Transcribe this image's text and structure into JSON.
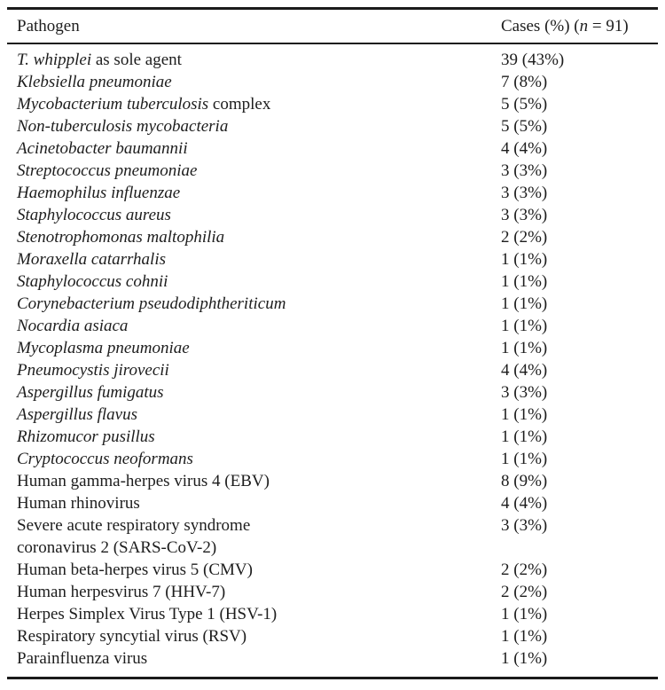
{
  "colors": {
    "background": "#ffffff",
    "text": "#1d1d1d",
    "rule": "#1a1a1a"
  },
  "table": {
    "header": {
      "pathogen": "Pathogen",
      "cases_pre": "Cases (%) (",
      "cases_n": "n",
      "cases_post": " = 91)"
    },
    "rows": [
      {
        "name_lines": [
          [
            {
              "text": "T. whipplei",
              "italic": true
            },
            {
              "text": " as sole agent",
              "italic": false
            }
          ]
        ],
        "cases": "39 (43%)"
      },
      {
        "name_lines": [
          [
            {
              "text": "Klebsiella pneumoniae",
              "italic": true
            }
          ]
        ],
        "cases": "7 (8%)"
      },
      {
        "name_lines": [
          [
            {
              "text": "Mycobacterium tuberculosis",
              "italic": true
            },
            {
              "text": " complex",
              "italic": false
            }
          ]
        ],
        "cases": "5 (5%)"
      },
      {
        "name_lines": [
          [
            {
              "text": "Non-tuberculosis mycobacteria",
              "italic": true
            }
          ]
        ],
        "cases": "5 (5%)"
      },
      {
        "name_lines": [
          [
            {
              "text": "Acinetobacter baumannii",
              "italic": true
            }
          ]
        ],
        "cases": "4 (4%)"
      },
      {
        "name_lines": [
          [
            {
              "text": "Streptococcus pneumoniae",
              "italic": true
            }
          ]
        ],
        "cases": "3 (3%)"
      },
      {
        "name_lines": [
          [
            {
              "text": "Haemophilus influenzae",
              "italic": true
            }
          ]
        ],
        "cases": "3 (3%)"
      },
      {
        "name_lines": [
          [
            {
              "text": "Staphylococcus aureus",
              "italic": true
            }
          ]
        ],
        "cases": "3 (3%)"
      },
      {
        "name_lines": [
          [
            {
              "text": "Stenotrophomonas maltophilia",
              "italic": true
            }
          ]
        ],
        "cases": "2 (2%)"
      },
      {
        "name_lines": [
          [
            {
              "text": "Moraxella catarrhalis",
              "italic": true
            }
          ]
        ],
        "cases": "1 (1%)"
      },
      {
        "name_lines": [
          [
            {
              "text": "Staphylococcus cohnii",
              "italic": true
            }
          ]
        ],
        "cases": "1 (1%)"
      },
      {
        "name_lines": [
          [
            {
              "text": "Corynebacterium pseudodiphtheriticum",
              "italic": true
            }
          ]
        ],
        "cases": "1 (1%)"
      },
      {
        "name_lines": [
          [
            {
              "text": "Nocardia asiaca",
              "italic": true
            }
          ]
        ],
        "cases": "1 (1%)"
      },
      {
        "name_lines": [
          [
            {
              "text": "Mycoplasma pneumoniae",
              "italic": true
            }
          ]
        ],
        "cases": "1 (1%)"
      },
      {
        "name_lines": [
          [
            {
              "text": "Pneumocystis jirovecii",
              "italic": true
            }
          ]
        ],
        "cases": "4 (4%)"
      },
      {
        "name_lines": [
          [
            {
              "text": "Aspergillus fumigatus",
              "italic": true
            }
          ]
        ],
        "cases": "3 (3%)"
      },
      {
        "name_lines": [
          [
            {
              "text": "Aspergillus flavus",
              "italic": true
            }
          ]
        ],
        "cases": "1 (1%)"
      },
      {
        "name_lines": [
          [
            {
              "text": "Rhizomucor pusillus",
              "italic": true
            }
          ]
        ],
        "cases": "1 (1%)"
      },
      {
        "name_lines": [
          [
            {
              "text": "Cryptococcus neoformans",
              "italic": true
            }
          ]
        ],
        "cases": "1 (1%)"
      },
      {
        "name_lines": [
          [
            {
              "text": "Human gamma-herpes virus 4 (EBV)",
              "italic": false
            }
          ]
        ],
        "cases": "8 (9%)"
      },
      {
        "name_lines": [
          [
            {
              "text": "Human rhinovirus",
              "italic": false
            }
          ]
        ],
        "cases": "4 (4%)"
      },
      {
        "name_lines": [
          [
            {
              "text": "Severe acute respiratory syndrome",
              "italic": false
            }
          ],
          [
            {
              "text": "coronavirus 2 (SARS-CoV-2)",
              "italic": false
            }
          ]
        ],
        "cases": "3 (3%)"
      },
      {
        "name_lines": [
          [
            {
              "text": "Human beta-herpes virus 5 (CMV)",
              "italic": false
            }
          ]
        ],
        "cases": "2 (2%)"
      },
      {
        "name_lines": [
          [
            {
              "text": "Human herpesvirus 7 (HHV-7)",
              "italic": false
            }
          ]
        ],
        "cases": "2 (2%)"
      },
      {
        "name_lines": [
          [
            {
              "text": "Herpes Simplex Virus Type 1 (HSV-1)",
              "italic": false
            }
          ]
        ],
        "cases": "1 (1%)"
      },
      {
        "name_lines": [
          [
            {
              "text": "Respiratory syncytial virus (RSV)",
              "italic": false
            }
          ]
        ],
        "cases": "1 (1%)"
      },
      {
        "name_lines": [
          [
            {
              "text": "Parainfluenza virus",
              "italic": false
            }
          ]
        ],
        "cases": "1 (1%)"
      }
    ]
  }
}
